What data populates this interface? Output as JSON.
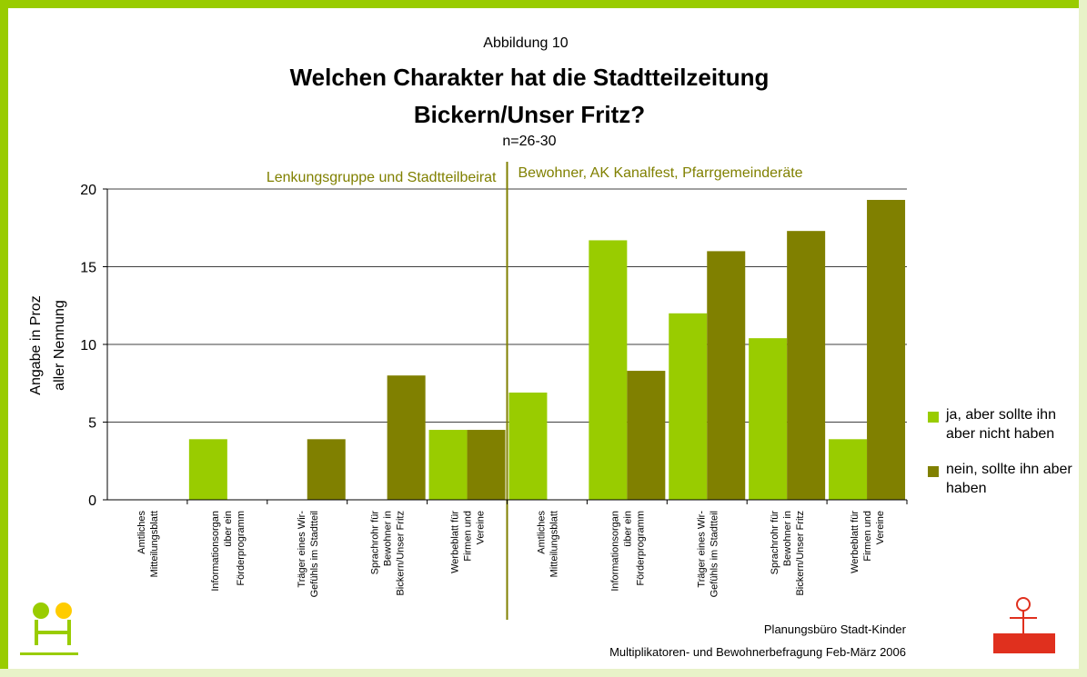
{
  "chart_data": {
    "type": "bar",
    "subtitle": "Abbildung 10",
    "title": [
      "Welchen Charakter hat die Stadtteilzeitung",
      "Bickern/Unser Fritz?"
    ],
    "note": "n=26-30",
    "y_label": [
      "Angabe in Proz",
      "aller Nennung"
    ],
    "groups": [
      "Lenkungsgruppe und Stadtteilbeirat",
      "Bewohner, AK Kanalfest, Pfarrgemeinderäte"
    ],
    "categories": [
      [
        "Amtliches",
        "Mitteilungsblatt"
      ],
      [
        "Informationsorgan",
        "über ein",
        "Förderprogramm"
      ],
      [
        "Träger eines Wir-",
        "Gefühls im Stadtteil"
      ],
      [
        "Sprachrohr für",
        "Bewohner in",
        "Bickern/Unser Fritz"
      ],
      [
        "Werbeblatt für",
        "Firmen und",
        "Vereine"
      ],
      [
        "Amtliches",
        "Mitteilungsblatt"
      ],
      [
        "Informationsorgan",
        "über ein",
        "Förderprogramm"
      ],
      [
        "Träger eines Wir-",
        "Gefühls im Stadtteil"
      ],
      [
        "Sprachrohr für",
        "Bewohner in",
        "Bickern/Unser Fritz"
      ],
      [
        "Werbeblatt für",
        "Firmen und",
        "Vereine"
      ]
    ],
    "series": [
      {
        "name": "ja, aber sollte ihn aber nicht haben",
        "color": "#99cc00",
        "values": [
          0,
          3.9,
          0,
          0,
          4.5,
          6.9,
          16.7,
          12,
          10.4,
          3.9
        ]
      },
      {
        "name": "nein, sollte ihn aber haben",
        "color": "#808000",
        "values": [
          0,
          0,
          3.9,
          8,
          4.5,
          0,
          8.3,
          16,
          17.3,
          19.3
        ]
      }
    ],
    "ylim": [
      0,
      20
    ],
    "yticks": [
      0,
      5,
      10,
      15,
      20
    ],
    "grid": true,
    "footer": [
      "Planungsbüro Stadt-Kinder",
      "Multiplikatoren- und Bewohnerbefragung Feb-März 2006"
    ]
  }
}
